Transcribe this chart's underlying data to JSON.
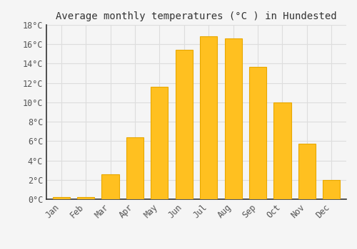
{
  "title": "Average monthly temperatures (°C ) in Hundested",
  "months": [
    "Jan",
    "Feb",
    "Mar",
    "Apr",
    "May",
    "Jun",
    "Jul",
    "Aug",
    "Sep",
    "Oct",
    "Nov",
    "Dec"
  ],
  "temperatures": [
    0.2,
    0.2,
    2.6,
    6.4,
    11.6,
    15.4,
    16.8,
    16.6,
    13.7,
    10.0,
    5.7,
    2.0
  ],
  "bar_color": "#FFC020",
  "bar_edge_color": "#E8A800",
  "ylim": [
    0,
    18
  ],
  "ytick_interval": 2,
  "background_color": "#f5f5f5",
  "plot_bg_color": "#f5f5f5",
  "grid_color": "#dddddd",
  "spine_color": "#333333",
  "title_fontsize": 10,
  "tick_label_fontsize": 8.5,
  "font_family": "monospace"
}
